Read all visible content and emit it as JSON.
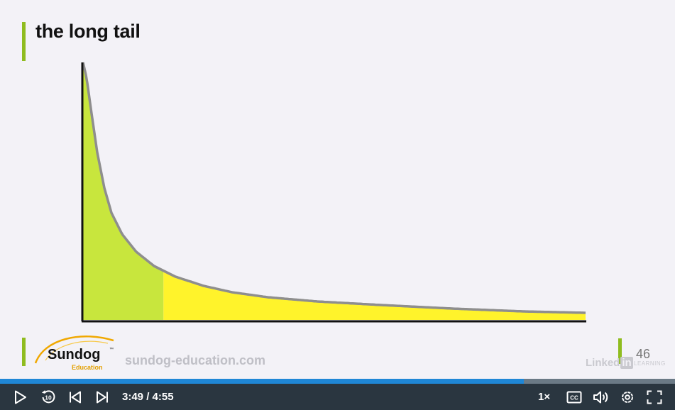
{
  "slide": {
    "title": "the long tail",
    "logo_text": "Sundog",
    "logo_tm": "™",
    "logo_subtext": "Education",
    "site_url": "sundog-education.com",
    "slide_number": "46",
    "watermark_main": "Linked",
    "watermark_in": "in",
    "watermark_sub": "LEARNING"
  },
  "colors": {
    "head_fill": "#c8e63d",
    "tail_fill": "#fff32b",
    "curve": "#8e8e8e",
    "accent_bar": "#8fbc1f",
    "progress": "#1f87d6",
    "control_bg": "#2a3640"
  },
  "chart_data": {
    "type": "area",
    "title": "the long tail",
    "xlabel": "",
    "ylabel": "",
    "grid": false,
    "legend": "none",
    "head_boundary_fraction": 0.16
  },
  "player": {
    "current_time": "3:49",
    "separator": "/",
    "duration": "4:55",
    "progress_fraction": 0.776,
    "speed_label": "1×",
    "icons": {
      "play": "play-icon",
      "rewind": "rewind-10-icon",
      "previous": "previous-icon",
      "next": "next-icon",
      "captions": "captions-icon",
      "volume": "volume-icon",
      "settings": "settings-icon",
      "fullscreen": "fullscreen-icon"
    }
  }
}
